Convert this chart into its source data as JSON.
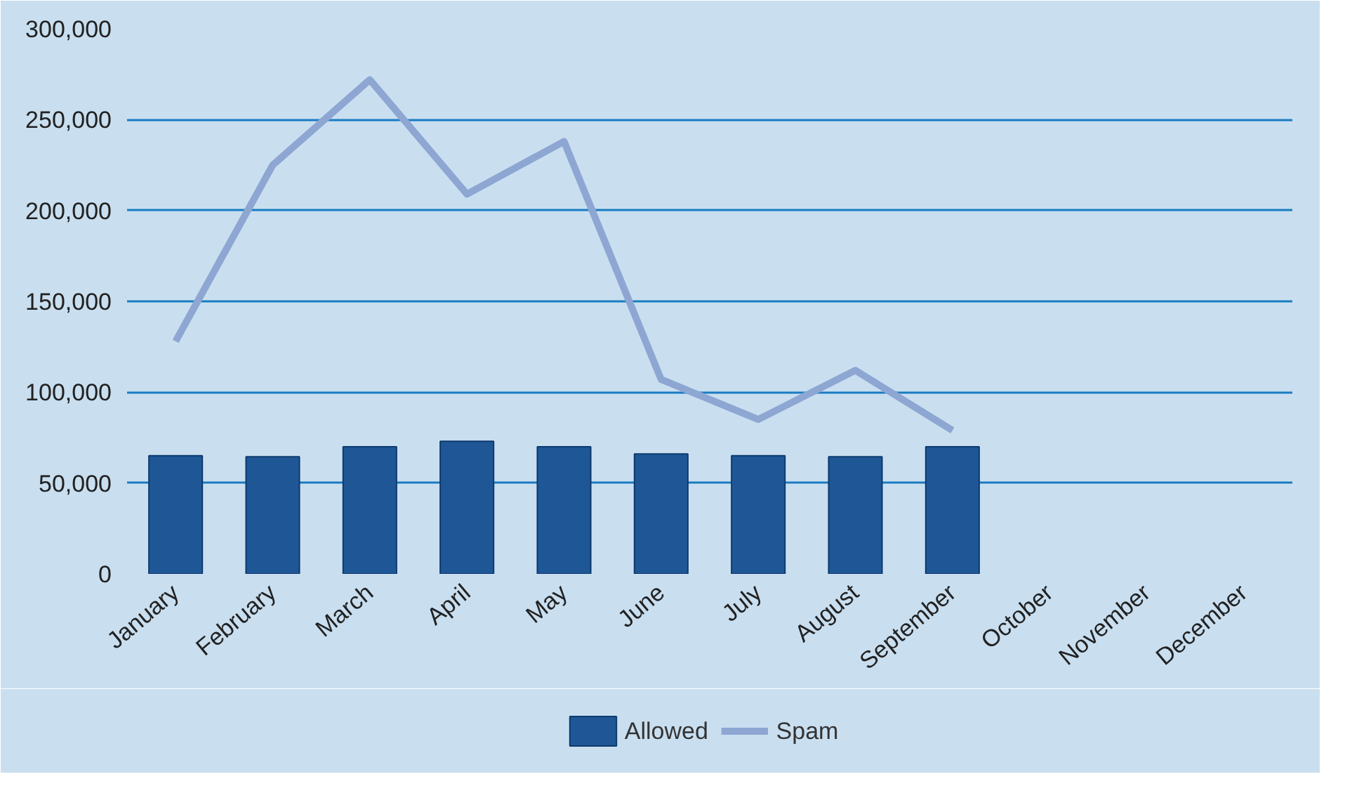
{
  "chart_data": {
    "type": "bar",
    "categories": [
      "January",
      "February",
      "March",
      "April",
      "May",
      "June",
      "July",
      "August",
      "September",
      "October",
      "November",
      "December"
    ],
    "series": [
      {
        "name": "Allowed",
        "color": "#1f5796",
        "values": [
          65000,
          64500,
          70000,
          73000,
          70000,
          66000,
          65000,
          64500,
          70000,
          null,
          null,
          null
        ]
      },
      {
        "name": "Spam",
        "type": "line",
        "color": "#8ea6d2",
        "values": [
          128000,
          225000,
          272000,
          209000,
          238000,
          107000,
          85000,
          112000,
          79000,
          null,
          null,
          null
        ]
      }
    ],
    "ylim": [
      0,
      300000
    ],
    "yticks": [
      {
        "value": 0,
        "label": "0"
      },
      {
        "value": 50000,
        "label": "50,000"
      },
      {
        "value": 100000,
        "label": "100,000"
      },
      {
        "value": 150000,
        "label": "150,000"
      },
      {
        "value": 200000,
        "label": "200,000"
      },
      {
        "value": 250000,
        "label": "250,000"
      },
      {
        "value": 300000,
        "label": "300,000"
      }
    ],
    "grid": "y",
    "legend": "bottom"
  }
}
